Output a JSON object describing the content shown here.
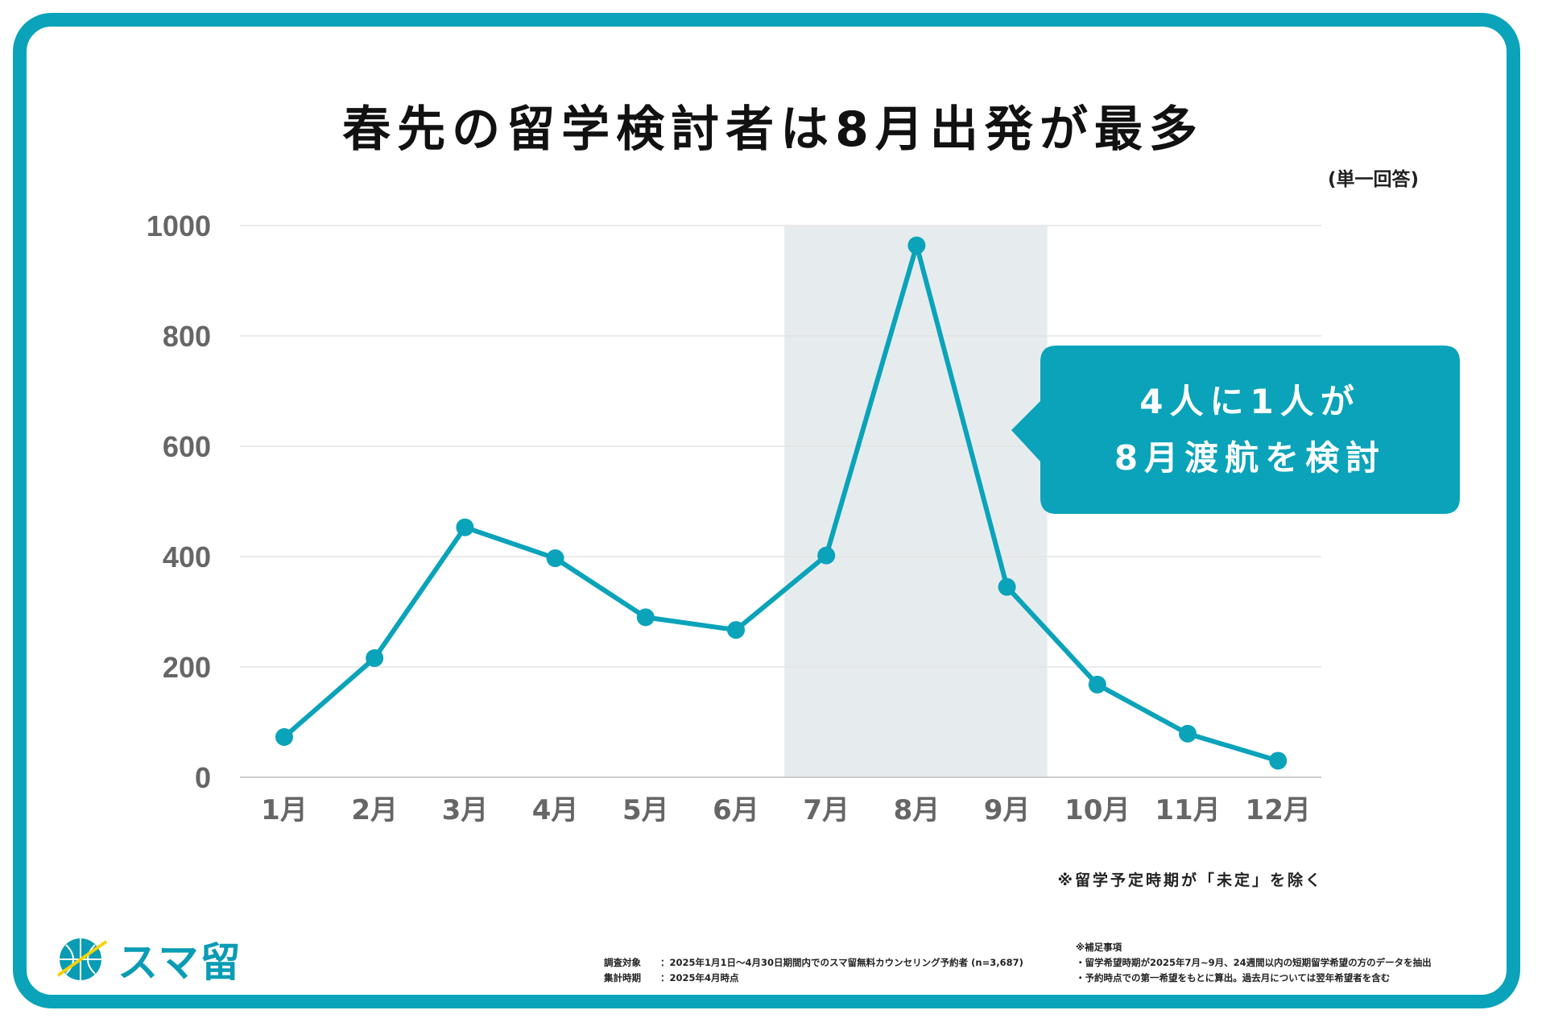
{
  "title": "春先の留学検討者は8月出発が最多",
  "unit_note": "(単一回答)",
  "exclusion_note": "※留学予定時期が「未定」を除く",
  "callout": {
    "line1": "4人に1人が",
    "line2": "8月渡航を検討"
  },
  "logo": {
    "text": "スマ留"
  },
  "footer": {
    "survey_label": "調査対象",
    "survey_value": "：2025年1月1日〜4月30日期間内でのスマ留無料カウンセリング予約者 (n=3,687)",
    "period_label": "集計時期",
    "period_value": "：2025年4月時点",
    "supplement_title": "※補足事項",
    "supplement_1": "・留学希望時期が2025年7月~9月、24週間以内の短期留学希望の方のデータを抽出",
    "supplement_2": "・予約時点での第一希望をもとに算出。過去月については翌年希望者を含む"
  },
  "colors": {
    "accent": "#0aa3ba",
    "highlight": "#e6ecee",
    "grid": "#e4e4e4",
    "tick": "#666666"
  },
  "chart_data": {
    "type": "line",
    "title": "春先の留学検討者は8月出発が最多",
    "categories": [
      "1月",
      "2月",
      "3月",
      "4月",
      "5月",
      "6月",
      "7月",
      "8月",
      "9月",
      "10月",
      "11月",
      "12月"
    ],
    "values": [
      73,
      216,
      453,
      397,
      290,
      267,
      402,
      964,
      345,
      168,
      79,
      30
    ],
    "yticks": [
      "0",
      "200",
      "400",
      "600",
      "800",
      "1000"
    ],
    "ylim": [
      0,
      1000
    ],
    "grid": true,
    "highlight_range": [
      "7月",
      "9月"
    ],
    "xlabel": "",
    "ylabel": ""
  }
}
